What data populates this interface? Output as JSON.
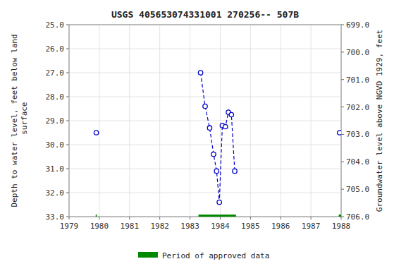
{
  "chart_data": {
    "type": "line",
    "title": "USGS 405653074331001 270256-- 507B",
    "y_label": "Depth to water level, feet below land\n surface",
    "y2_label": "Groundwater level above NGVD 1929, feet",
    "xlim": [
      1979,
      1988
    ],
    "xticks": [
      1979,
      1980,
      1981,
      1982,
      1983,
      1984,
      1985,
      1986,
      1987,
      1988
    ],
    "ylim": [
      33.0,
      25.0
    ],
    "yticks": [
      {
        "value": 25.0,
        "label": "25.0"
      },
      {
        "value": 26.0,
        "label": "26.0"
      },
      {
        "value": 27.0,
        "label": "27.0"
      },
      {
        "value": 28.0,
        "label": "28.0"
      },
      {
        "value": 29.0,
        "label": "29.0"
      },
      {
        "value": 30.0,
        "label": "30.0"
      },
      {
        "value": 31.0,
        "label": "31.0"
      },
      {
        "value": 32.0,
        "label": "32.0"
      },
      {
        "value": 33.0,
        "label": "33.0"
      }
    ],
    "y2lim": [
      706.0,
      699.0
    ],
    "y2ticks": [
      {
        "value": 706.0,
        "label": "706.0"
      },
      {
        "value": 705.0,
        "label": "705.0"
      },
      {
        "value": 704.0,
        "label": "704.0"
      },
      {
        "value": 703.0,
        "label": "703.0"
      },
      {
        "value": 702.0,
        "label": "702.0"
      },
      {
        "value": 701.0,
        "label": "701.0"
      },
      {
        "value": 700.0,
        "label": "700.0"
      },
      {
        "value": 699.0,
        "label": "699.0"
      }
    ],
    "grid": true,
    "legend": "bottom",
    "series": [
      {
        "type": "line",
        "color": "#0000CC",
        "line_style": "dashed",
        "marker": "circle",
        "x": [
          1979.9
        ],
        "values": [
          29.5
        ]
      },
      {
        "type": "line",
        "color": "#0000CC",
        "line_style": "dashed",
        "marker": "circle",
        "x": [
          1983.35,
          1983.5,
          1983.65,
          1983.78,
          1983.88,
          1983.97,
          1984.07,
          1984.17,
          1984.27,
          1984.37,
          1984.48
        ],
        "values": [
          27.0,
          28.4,
          29.3,
          30.4,
          31.1,
          32.4,
          29.2,
          29.25,
          28.65,
          28.75,
          31.1
        ]
      },
      {
        "type": "line",
        "color": "#0000CC",
        "line_style": "dashed",
        "marker": "circle",
        "x": [
          1987.95
        ],
        "values": [
          29.5
        ]
      },
      {
        "type": "bar",
        "orientation": "horizontal",
        "name": "Period of approved data",
        "color": "#008800",
        "y": 33.0,
        "starts": [
          1979.88,
          1983.28,
          1987.92
        ],
        "ends": [
          1979.92,
          1984.52,
          1988.0
        ]
      }
    ]
  }
}
